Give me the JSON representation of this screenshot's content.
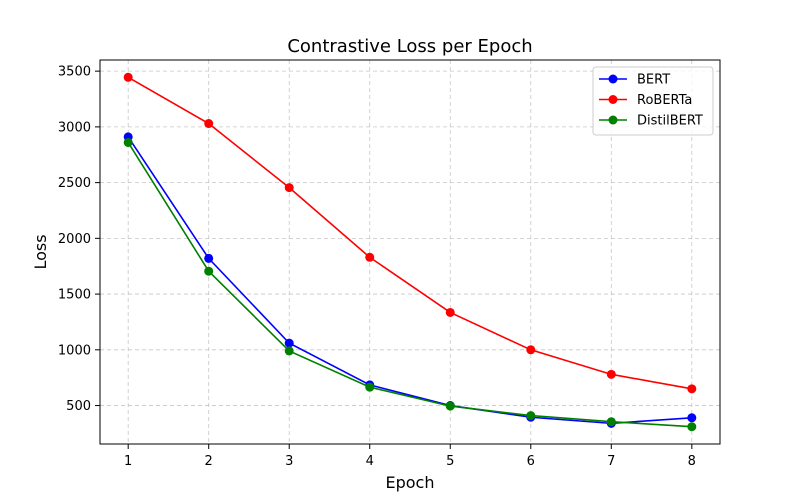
{
  "chart_data": {
    "type": "line",
    "title": "Contrastive Loss per Epoch",
    "xlabel": "Epoch",
    "ylabel": "Loss",
    "x": [
      1,
      2,
      3,
      4,
      5,
      6,
      7,
      8
    ],
    "xticks": [
      1,
      2,
      3,
      4,
      5,
      6,
      7,
      8
    ],
    "yticks": [
      500,
      1000,
      1500,
      2000,
      2500,
      3000,
      3500
    ],
    "xlim": [
      0.65,
      8.35
    ],
    "ylim": [
      155,
      3600
    ],
    "grid": true,
    "legend_position": "top-right",
    "series": [
      {
        "name": "BERT",
        "color": "#0000ff",
        "values": [
          2910,
          1820,
          1060,
          685,
          500,
          395,
          340,
          390
        ]
      },
      {
        "name": "RoBERTa",
        "color": "#ff0000",
        "values": [
          3445,
          3030,
          2455,
          1830,
          1335,
          1000,
          780,
          650
        ]
      },
      {
        "name": "DistilBERT",
        "color": "#008000",
        "values": [
          2860,
          1705,
          990,
          665,
          495,
          410,
          355,
          310
        ]
      }
    ]
  }
}
